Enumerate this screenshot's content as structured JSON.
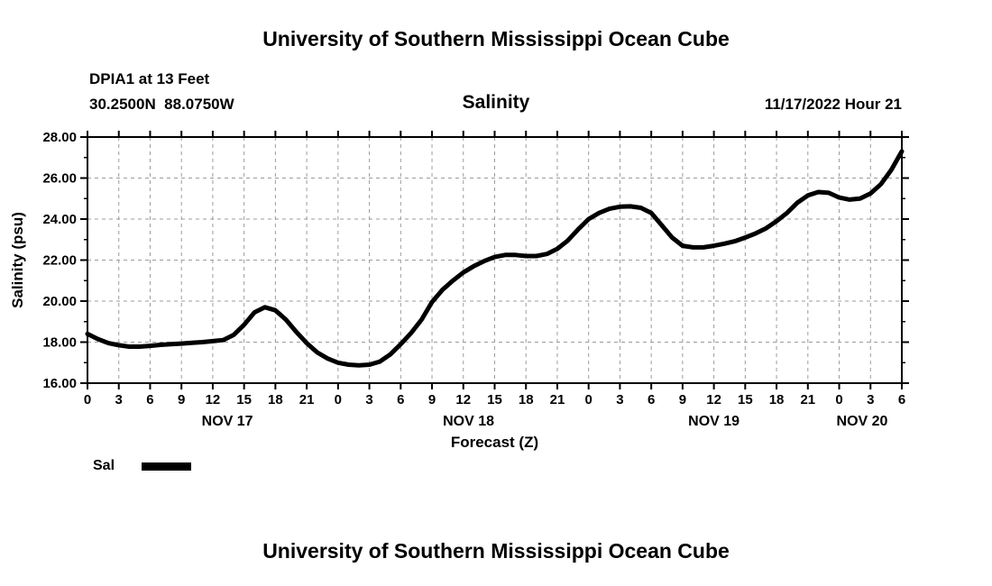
{
  "header": {
    "title": "University of Southern Mississippi Ocean Cube",
    "station": "DPIA1 at 13 Feet",
    "coords": "30.2500N  88.0750W",
    "datetime": "11/17/2022 Hour 21"
  },
  "chart_data": {
    "type": "line",
    "title": "Salinity",
    "ylabel": "Salinity (psu)",
    "xlabel": "Forecast (Z)",
    "ylim": [
      16,
      28
    ],
    "ytick_step": 2,
    "yminor_step": 1,
    "xlim": [
      0,
      78
    ],
    "xtick_step": 3,
    "hour_label_mod": 24,
    "grid": true,
    "legend_position": "bottom-left",
    "line_color": "#000000",
    "grid_color": "#9b9b9b",
    "day_labels": [
      {
        "label": "NOV 17",
        "hour": 13.4
      },
      {
        "label": "NOV 18",
        "hour": 36.5
      },
      {
        "label": "NOV 19",
        "hour": 60.0
      },
      {
        "label": "NOV 20",
        "hour": 74.2
      }
    ],
    "series": [
      {
        "name": "Sal",
        "color": "#000000",
        "x": [
          0,
          1,
          2,
          3,
          4,
          5,
          6,
          7,
          8,
          9,
          10,
          11,
          12,
          13,
          14,
          15,
          16,
          17,
          18,
          19,
          20,
          21,
          22,
          23,
          24,
          25,
          26,
          27,
          28,
          29,
          30,
          31,
          32,
          33,
          34,
          35,
          36,
          37,
          38,
          39,
          40,
          41,
          42,
          43,
          44,
          45,
          46,
          47,
          48,
          49,
          50,
          51,
          52,
          53,
          54,
          55,
          56,
          57,
          58,
          59,
          60,
          61,
          62,
          63,
          64,
          65,
          66,
          67,
          68,
          69,
          70,
          71,
          72,
          73,
          74,
          75,
          76,
          77,
          78
        ],
        "y": [
          18.4,
          18.15,
          17.95,
          17.85,
          17.78,
          17.78,
          17.82,
          17.87,
          17.9,
          17.93,
          17.97,
          18.0,
          18.05,
          18.1,
          18.35,
          18.85,
          19.45,
          19.7,
          19.55,
          19.1,
          18.5,
          17.95,
          17.5,
          17.2,
          17.0,
          16.9,
          16.87,
          16.9,
          17.05,
          17.4,
          17.9,
          18.45,
          19.1,
          19.95,
          20.55,
          21.0,
          21.4,
          21.7,
          21.95,
          22.15,
          22.25,
          22.25,
          22.2,
          22.2,
          22.3,
          22.55,
          22.95,
          23.5,
          24.0,
          24.3,
          24.5,
          24.6,
          24.62,
          24.55,
          24.3,
          23.7,
          23.1,
          22.7,
          22.62,
          22.62,
          22.7,
          22.8,
          22.92,
          23.1,
          23.3,
          23.55,
          23.9,
          24.3,
          24.8,
          25.15,
          25.32,
          25.28,
          25.05,
          24.95,
          25.0,
          25.25,
          25.7,
          26.4,
          27.3
        ]
      }
    ]
  },
  "footer": {
    "next_chart_title": "University of Southern Mississippi Ocean Cube"
  }
}
